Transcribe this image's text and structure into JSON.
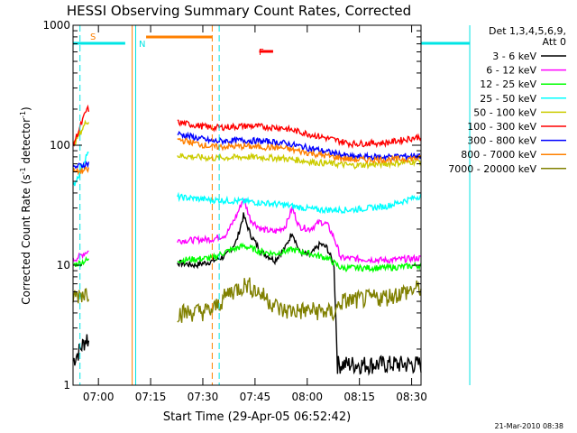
{
  "chart_data": {
    "type": "line",
    "title": "HESSI Observing Summary Count Rates, Corrected",
    "xlabel": "Start Time (29-Apr-05 06:52:42)",
    "ylabel_main": "Corrected Count Rate (s",
    "ylabel_sup1": "-1",
    "ylabel_mid": " detector",
    "ylabel_sup2": "-1",
    "ylabel_end": ")",
    "y_scale": "log",
    "ylim": [
      1,
      1000
    ],
    "xlim": [
      "06:52:42",
      "08:32:42"
    ],
    "x_ticks": [
      "07:00",
      "07:15",
      "07:30",
      "07:45",
      "08:00",
      "08:15",
      "08:30"
    ],
    "y_ticks": [
      "1",
      "10",
      "100",
      "1000"
    ],
    "timestamp": "21-Mar-2010 08:38",
    "legend_header": [
      "Det 1,3,4,5,6,9,",
      "Att 0"
    ],
    "legend_placement": "right",
    "flags": {
      "S_label": "S",
      "N_label": "N",
      "F_label": "F",
      "saa_color": "#ff8000",
      "night_color": "#00e5e5",
      "flare_color": "#ff0000"
    },
    "series": [
      {
        "name": "3 - 6 keV",
        "color": "#000000",
        "points": [
          [
            0,
            1.6
          ],
          [
            4,
            2.5
          ],
          [
            6,
            1.8
          ],
          [
            30,
            10.5
          ],
          [
            35,
            10
          ],
          [
            40,
            10.8
          ],
          [
            44,
            12
          ],
          [
            47,
            16
          ],
          [
            49,
            26
          ],
          [
            51,
            18
          ],
          [
            54,
            13
          ],
          [
            58,
            11
          ],
          [
            61,
            14
          ],
          [
            63,
            19
          ],
          [
            65,
            13
          ],
          [
            68,
            12
          ],
          [
            71,
            15
          ],
          [
            73,
            14
          ],
          [
            75,
            10
          ],
          [
            76,
            1.5
          ],
          [
            100,
            1.5
          ]
        ]
      },
      {
        "name": "6 - 12 keV",
        "color": "#ff00ff",
        "points": [
          [
            0,
            11
          ],
          [
            4,
            13
          ],
          [
            30,
            16
          ],
          [
            40,
            16.5
          ],
          [
            44,
            18
          ],
          [
            47,
            26
          ],
          [
            49,
            36
          ],
          [
            51,
            24
          ],
          [
            54,
            20
          ],
          [
            58,
            19
          ],
          [
            61,
            21
          ],
          [
            63,
            30
          ],
          [
            65,
            21
          ],
          [
            68,
            20
          ],
          [
            71,
            23
          ],
          [
            73,
            22
          ],
          [
            75,
            17
          ],
          [
            77,
            11.5
          ],
          [
            90,
            11
          ],
          [
            100,
            11.5
          ]
        ]
      },
      {
        "name": "12 - 25 keV",
        "color": "#00ff00",
        "points": [
          [
            0,
            10
          ],
          [
            4,
            11
          ],
          [
            30,
            11
          ],
          [
            40,
            11.5
          ],
          [
            44,
            13
          ],
          [
            49,
            14.5
          ],
          [
            54,
            13
          ],
          [
            58,
            12.5
          ],
          [
            63,
            13.5
          ],
          [
            68,
            12.5
          ],
          [
            73,
            11.5
          ],
          [
            77,
            9.5
          ],
          [
            90,
            9.5
          ],
          [
            100,
            10
          ]
        ]
      },
      {
        "name": "25 - 50 keV",
        "color": "#00ffff",
        "points": [
          [
            0,
            45
          ],
          [
            2,
            60
          ],
          [
            4,
            85
          ],
          [
            30,
            37
          ],
          [
            40,
            35
          ],
          [
            50,
            34
          ],
          [
            60,
            32
          ],
          [
            70,
            29
          ],
          [
            80,
            29
          ],
          [
            90,
            31
          ],
          [
            100,
            38
          ]
        ]
      },
      {
        "name": "50 - 100 keV",
        "color": "#cccc00",
        "points": [
          [
            0,
            100
          ],
          [
            4,
            160
          ],
          [
            30,
            82
          ],
          [
            40,
            78
          ],
          [
            50,
            80
          ],
          [
            60,
            78
          ],
          [
            70,
            72
          ],
          [
            80,
            68
          ],
          [
            90,
            70
          ],
          [
            100,
            74
          ]
        ]
      },
      {
        "name": "100 - 300 keV",
        "color": "#ff0000",
        "points": [
          [
            0,
            100
          ],
          [
            4,
            200
          ],
          [
            30,
            155
          ],
          [
            40,
            140
          ],
          [
            50,
            145
          ],
          [
            60,
            140
          ],
          [
            70,
            120
          ],
          [
            80,
            103
          ],
          [
            90,
            105
          ],
          [
            100,
            118
          ]
        ]
      },
      {
        "name": "300 - 800 keV",
        "color": "#0000ff",
        "points": [
          [
            0,
            65
          ],
          [
            4,
            70
          ],
          [
            30,
            125
          ],
          [
            40,
            108
          ],
          [
            50,
            110
          ],
          [
            60,
            105
          ],
          [
            70,
            92
          ],
          [
            80,
            80
          ],
          [
            90,
            80
          ],
          [
            100,
            82
          ]
        ]
      },
      {
        "name": "800 - 7000 keV",
        "color": "#ff8000",
        "points": [
          [
            0,
            60
          ],
          [
            4,
            62
          ],
          [
            30,
            112
          ],
          [
            40,
            97
          ],
          [
            50,
            98
          ],
          [
            60,
            95
          ],
          [
            70,
            84
          ],
          [
            80,
            76
          ],
          [
            90,
            76
          ],
          [
            100,
            78
          ]
        ]
      },
      {
        "name": "7000 - 20000 keV",
        "color": "#808000",
        "points": [
          [
            0,
            5.5
          ],
          [
            4,
            6
          ],
          [
            30,
            4
          ],
          [
            40,
            4.2
          ],
          [
            45,
            6
          ],
          [
            50,
            7
          ],
          [
            55,
            5.5
          ],
          [
            60,
            4.2
          ],
          [
            70,
            4.2
          ],
          [
            75,
            4
          ],
          [
            77,
            5
          ],
          [
            90,
            5.5
          ],
          [
            100,
            6.5
          ]
        ]
      }
    ],
    "flag_intervals": {
      "saa_bar": [
        21,
        40
      ],
      "night_bars": [
        [
          0,
          15
        ],
        [
          114,
          132
        ]
      ],
      "flare_bar": [
        53.5,
        57.5
      ],
      "vlines_solid_orange": [
        17,
        18
      ],
      "vlines_dash_orange": [
        40
      ],
      "vlines_solid_cyan": [
        18,
        114
      ],
      "vlines_dash_cyan": [
        2,
        42,
        132
      ]
    }
  }
}
